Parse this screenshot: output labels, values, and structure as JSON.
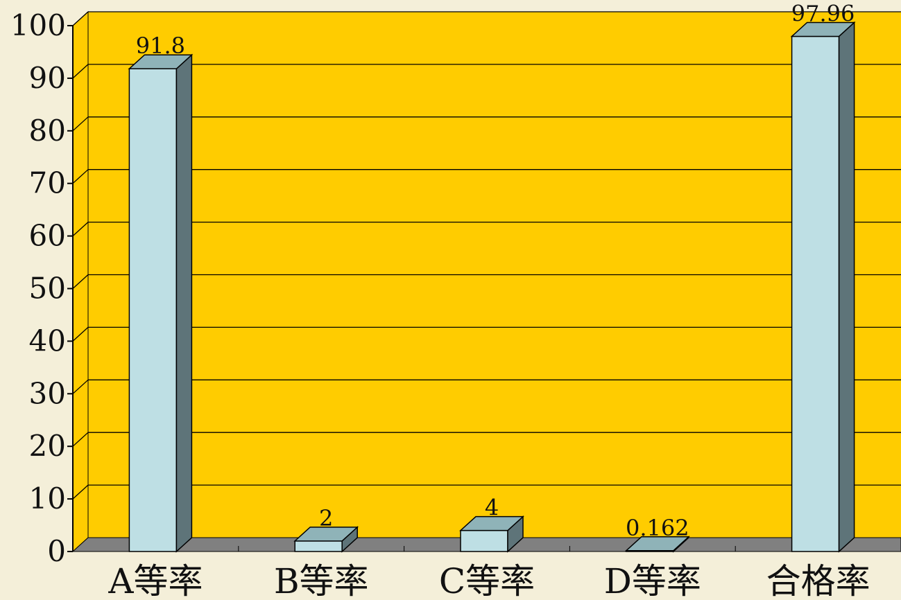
{
  "chart_data": {
    "type": "bar",
    "categories": [
      "A等率",
      "B等率",
      "C等率",
      "D等率",
      "合格率"
    ],
    "values": [
      91.8,
      2,
      4,
      0.162,
      97.96
    ],
    "data_labels": [
      "91.8",
      "2",
      "4",
      "0.162",
      "97.96"
    ],
    "ylim": [
      0,
      100
    ],
    "yticks": [
      "0",
      "10",
      "20",
      "30",
      "40",
      "50",
      "60",
      "70",
      "80",
      "90",
      "100"
    ],
    "style": "3d-column",
    "grid": true,
    "legend": "none",
    "colors": {
      "plot_back": "#FFCC00",
      "floor": "#808080",
      "bar_front": "#BEDFE4",
      "bar_top": "#8FB3B8",
      "bar_side": "#5E7479",
      "line": "#000000",
      "page_bg": "#F4EFD9"
    }
  }
}
